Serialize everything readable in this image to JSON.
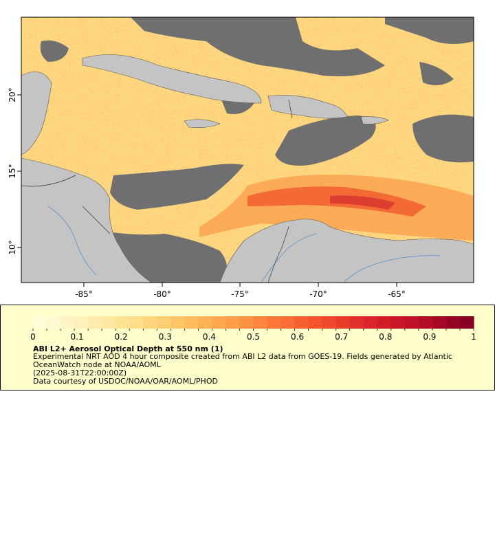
{
  "map": {
    "lon_ticks": [
      "-85°",
      "-80°",
      "-75°",
      "-70°",
      "-65°"
    ],
    "lat_ticks": [
      "20°",
      "15°",
      "10°"
    ],
    "colors": {
      "land": "#c4c4c4",
      "no_data": "#6f6f6f",
      "frame": "#000000",
      "rivers": "#5b8fc9",
      "borders": "#555555"
    }
  },
  "legend": {
    "scale_labels": [
      "0",
      "0.1",
      "0.2",
      "0.3",
      "0.4",
      "0.5",
      "0.6",
      "0.7",
      "0.8",
      "0.9",
      "1"
    ],
    "range": [
      0,
      1
    ],
    "colorbar_stops": [
      "#ffffe0",
      "#fff1b8",
      "#ffe08e",
      "#fec566",
      "#fda04a",
      "#fb7536",
      "#f04a2c",
      "#d8202a",
      "#b70d27",
      "#7f0022"
    ],
    "title": "ABI L2+ Aerosol Optical Depth at 550 nm (1)",
    "description_line1": "Experimental NRT AOD 4 hour composite created from ABI L2 data from GOES-19. Fields generated by Atlantic",
    "description_line2": "OceanWatch node at NOAA/AOML",
    "timestamp": "(2025-08-31T22:00:00Z)",
    "credit": "Data courtesy of USDOC/NOAA/OAR/AOML/PHOD"
  }
}
